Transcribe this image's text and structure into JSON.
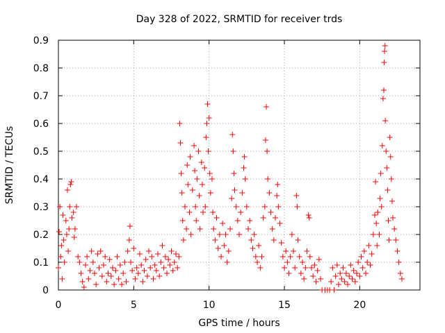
{
  "chart_data": {
    "type": "scatter",
    "title": "Day 328 of 2022, SRMTID for receiver trds",
    "xlabel": "GPS time / hours",
    "ylabel": "SRMTID / TECUs",
    "xlim": [
      0,
      24
    ],
    "ylim": [
      0,
      0.9
    ],
    "xticks": [
      0,
      5,
      10,
      15,
      20
    ],
    "xtick_labels": [
      "0",
      "5",
      "10",
      "15",
      "20"
    ],
    "yticks": [
      0,
      0.1,
      0.2,
      0.3,
      0.4,
      0.5,
      0.6,
      0.7,
      0.8,
      0.9
    ],
    "ytick_labels": [
      "0",
      "0.1",
      "0.2",
      "0.3",
      "0.4",
      "0.5",
      "0.6",
      "0.7",
      "0.8",
      "0.9"
    ],
    "grid": true,
    "marker": "+",
    "color": "#ff0000",
    "series": [
      {
        "name": "SRMTID",
        "points": [
          [
            0.0,
            0.08
          ],
          [
            0.05,
            0.21
          ],
          [
            0.1,
            0.3
          ],
          [
            0.15,
            0.12
          ],
          [
            0.2,
            0.16
          ],
          [
            0.25,
            0.04
          ],
          [
            0.3,
            0.27
          ],
          [
            0.35,
            0.18
          ],
          [
            0.4,
            0.1
          ],
          [
            0.5,
            0.25
          ],
          [
            0.55,
            0.2
          ],
          [
            0.6,
            0.36
          ],
          [
            0.65,
            0.14
          ],
          [
            0.7,
            0.22
          ],
          [
            0.75,
            0.3
          ],
          [
            0.8,
            0.38
          ],
          [
            0.85,
            0.39
          ],
          [
            0.9,
            0.26
          ],
          [
            1.0,
            0.28
          ],
          [
            1.05,
            0.19
          ],
          [
            1.1,
            0.22
          ],
          [
            1.2,
            0.3
          ],
          [
            1.3,
            0.12
          ],
          [
            1.4,
            0.1
          ],
          [
            1.5,
            0.06
          ],
          [
            1.6,
            0.03
          ],
          [
            1.7,
            0.01
          ],
          [
            1.8,
            0.09
          ],
          [
            1.9,
            0.12
          ],
          [
            2.0,
            0.04
          ],
          [
            2.1,
            0.07
          ],
          [
            2.2,
            0.14
          ],
          [
            2.3,
            0.1
          ],
          [
            2.4,
            0.06
          ],
          [
            2.5,
            0.02
          ],
          [
            2.6,
            0.13
          ],
          [
            2.7,
            0.08
          ],
          [
            2.8,
            0.14
          ],
          [
            2.9,
            0.05
          ],
          [
            3.0,
            0.09
          ],
          [
            3.1,
            0.12
          ],
          [
            3.2,
            0.03
          ],
          [
            3.3,
            0.06
          ],
          [
            3.4,
            0.11
          ],
          [
            3.5,
            0.05
          ],
          [
            3.6,
            0.08
          ],
          [
            3.7,
            0.02
          ],
          [
            3.8,
            0.07
          ],
          [
            3.9,
            0.12
          ],
          [
            4.0,
            0.04
          ],
          [
            4.1,
            0.09
          ],
          [
            4.2,
            0.02
          ],
          [
            4.3,
            0.06
          ],
          [
            4.4,
            0.1
          ],
          [
            4.5,
            0.03
          ],
          [
            4.6,
            0.14
          ],
          [
            4.7,
            0.18
          ],
          [
            4.75,
            0.23
          ],
          [
            4.8,
            0.1
          ],
          [
            4.9,
            0.07
          ],
          [
            5.0,
            0.15
          ],
          [
            5.1,
            0.04
          ],
          [
            5.2,
            0.08
          ],
          [
            5.3,
            0.06
          ],
          [
            5.4,
            0.13
          ],
          [
            5.5,
            0.09
          ],
          [
            5.6,
            0.03
          ],
          [
            5.7,
            0.07
          ],
          [
            5.8,
            0.11
          ],
          [
            5.9,
            0.05
          ],
          [
            6.0,
            0.14
          ],
          [
            6.1,
            0.08
          ],
          [
            6.2,
            0.12
          ],
          [
            6.3,
            0.04
          ],
          [
            6.4,
            0.09
          ],
          [
            6.5,
            0.07
          ],
          [
            6.6,
            0.13
          ],
          [
            6.7,
            0.05
          ],
          [
            6.8,
            0.1
          ],
          [
            6.9,
            0.16
          ],
          [
            7.0,
            0.08
          ],
          [
            7.1,
            0.12
          ],
          [
            7.2,
            0.06
          ],
          [
            7.3,
            0.11
          ],
          [
            7.4,
            0.09
          ],
          [
            7.5,
            0.14
          ],
          [
            7.6,
            0.07
          ],
          [
            7.7,
            0.1
          ],
          [
            7.8,
            0.13
          ],
          [
            7.9,
            0.08
          ],
          [
            8.0,
            0.12
          ],
          [
            8.05,
            0.6
          ],
          [
            8.1,
            0.53
          ],
          [
            8.15,
            0.42
          ],
          [
            8.2,
            0.35
          ],
          [
            8.25,
            0.25
          ],
          [
            8.3,
            0.18
          ],
          [
            8.4,
            0.3
          ],
          [
            8.5,
            0.22
          ],
          [
            8.55,
            0.45
          ],
          [
            8.6,
            0.38
          ],
          [
            8.7,
            0.28
          ],
          [
            8.75,
            0.48
          ],
          [
            8.8,
            0.2
          ],
          [
            8.9,
            0.36
          ],
          [
            9.0,
            0.52
          ],
          [
            9.05,
            0.43
          ],
          [
            9.1,
            0.3
          ],
          [
            9.15,
            0.25
          ],
          [
            9.2,
            0.4
          ],
          [
            9.3,
            0.5
          ],
          [
            9.35,
            0.34
          ],
          [
            9.4,
            0.22
          ],
          [
            9.5,
            0.46
          ],
          [
            9.55,
            0.38
          ],
          [
            9.6,
            0.28
          ],
          [
            9.7,
            0.44
          ],
          [
            9.75,
            0.3
          ],
          [
            9.8,
            0.55
          ],
          [
            9.85,
            0.6
          ],
          [
            9.9,
            0.67
          ],
          [
            9.95,
            0.5
          ],
          [
            10.0,
            0.62
          ],
          [
            10.05,
            0.42
          ],
          [
            10.1,
            0.35
          ],
          [
            10.2,
            0.4
          ],
          [
            10.25,
            0.28
          ],
          [
            10.3,
            0.22
          ],
          [
            10.4,
            0.18
          ],
          [
            10.5,
            0.26
          ],
          [
            10.6,
            0.15
          ],
          [
            10.7,
            0.2
          ],
          [
            10.8,
            0.12
          ],
          [
            10.9,
            0.24
          ],
          [
            11.0,
            0.16
          ],
          [
            11.1,
            0.2
          ],
          [
            11.2,
            0.1
          ],
          [
            11.3,
            0.14
          ],
          [
            11.4,
            0.22
          ],
          [
            11.5,
            0.33
          ],
          [
            11.55,
            0.56
          ],
          [
            11.6,
            0.5
          ],
          [
            11.65,
            0.42
          ],
          [
            11.7,
            0.36
          ],
          [
            11.8,
            0.3
          ],
          [
            11.9,
            0.25
          ],
          [
            12.0,
            0.2
          ],
          [
            12.1,
            0.28
          ],
          [
            12.2,
            0.35
          ],
          [
            12.3,
            0.44
          ],
          [
            12.35,
            0.48
          ],
          [
            12.4,
            0.4
          ],
          [
            12.5,
            0.3
          ],
          [
            12.6,
            0.22
          ],
          [
            12.7,
            0.25
          ],
          [
            12.8,
            0.18
          ],
          [
            12.9,
            0.15
          ],
          [
            13.0,
            0.2
          ],
          [
            13.1,
            0.12
          ],
          [
            13.2,
            0.1
          ],
          [
            13.3,
            0.16
          ],
          [
            13.4,
            0.08
          ],
          [
            13.5,
            0.12
          ],
          [
            13.6,
            0.26
          ],
          [
            13.7,
            0.3
          ],
          [
            13.75,
            0.54
          ],
          [
            13.8,
            0.66
          ],
          [
            13.85,
            0.5
          ],
          [
            13.9,
            0.4
          ],
          [
            14.0,
            0.35
          ],
          [
            14.1,
            0.28
          ],
          [
            14.2,
            0.22
          ],
          [
            14.3,
            0.18
          ],
          [
            14.4,
            0.26
          ],
          [
            14.5,
            0.34
          ],
          [
            14.55,
            0.38
          ],
          [
            14.6,
            0.3
          ],
          [
            14.7,
            0.24
          ],
          [
            14.8,
            0.17
          ],
          [
            14.9,
            0.12
          ],
          [
            15.0,
            0.08
          ],
          [
            15.1,
            0.14
          ],
          [
            15.2,
            0.1
          ],
          [
            15.3,
            0.06
          ],
          [
            15.4,
            0.12
          ],
          [
            15.5,
            0.2
          ],
          [
            15.6,
            0.14
          ],
          [
            15.7,
            0.08
          ],
          [
            15.8,
            0.34
          ],
          [
            15.85,
            0.3
          ],
          [
            15.9,
            0.18
          ],
          [
            16.0,
            0.12
          ],
          [
            16.1,
            0.06
          ],
          [
            16.2,
            0.1
          ],
          [
            16.3,
            0.04
          ],
          [
            16.4,
            0.08
          ],
          [
            16.5,
            0.14
          ],
          [
            16.6,
            0.27
          ],
          [
            16.65,
            0.26
          ],
          [
            16.7,
            0.12
          ],
          [
            16.8,
            0.08
          ],
          [
            16.9,
            0.05
          ],
          [
            17.0,
            0.09
          ],
          [
            17.1,
            0.03
          ],
          [
            17.2,
            0.07
          ],
          [
            17.3,
            0.11
          ],
          [
            17.4,
            0.04
          ],
          [
            17.5,
            0.0
          ],
          [
            17.7,
            0.0
          ],
          [
            17.85,
            0.0
          ],
          [
            18.0,
            0.0
          ],
          [
            18.1,
            0.03
          ],
          [
            18.2,
            0.08
          ],
          [
            18.3,
            0.0
          ],
          [
            18.4,
            0.05
          ],
          [
            18.5,
            0.09
          ],
          [
            18.6,
            0.02
          ],
          [
            18.7,
            0.06
          ],
          [
            18.8,
            0.04
          ],
          [
            18.9,
            0.08
          ],
          [
            19.0,
            0.03
          ],
          [
            19.1,
            0.06
          ],
          [
            19.2,
            0.02
          ],
          [
            19.3,
            0.05
          ],
          [
            19.4,
            0.09
          ],
          [
            19.5,
            0.04
          ],
          [
            19.6,
            0.07
          ],
          [
            19.7,
            0.03
          ],
          [
            19.8,
            0.06
          ],
          [
            19.9,
            0.1
          ],
          [
            20.0,
            0.05
          ],
          [
            20.1,
            0.12
          ],
          [
            20.2,
            0.08
          ],
          [
            20.3,
            0.14
          ],
          [
            20.4,
            0.06
          ],
          [
            20.5,
            0.1
          ],
          [
            20.6,
            0.16
          ],
          [
            20.7,
            0.09
          ],
          [
            20.8,
            0.13
          ],
          [
            20.9,
            0.2
          ],
          [
            21.0,
            0.27
          ],
          [
            21.05,
            0.39
          ],
          [
            21.1,
            0.24
          ],
          [
            21.15,
            0.16
          ],
          [
            21.2,
            0.28
          ],
          [
            21.3,
            0.2
          ],
          [
            21.35,
            0.33
          ],
          [
            21.4,
            0.42
          ],
          [
            21.45,
            0.3
          ],
          [
            21.5,
            0.52
          ],
          [
            21.55,
            0.69
          ],
          [
            21.6,
            0.72
          ],
          [
            21.62,
            0.82
          ],
          [
            21.65,
            0.86
          ],
          [
            21.68,
            0.88
          ],
          [
            21.7,
            0.61
          ],
          [
            21.75,
            0.5
          ],
          [
            21.8,
            0.44
          ],
          [
            21.85,
            0.36
          ],
          [
            21.9,
            0.25
          ],
          [
            21.95,
            0.18
          ],
          [
            22.0,
            0.55
          ],
          [
            22.05,
            0.48
          ],
          [
            22.1,
            0.4
          ],
          [
            22.15,
            0.32
          ],
          [
            22.2,
            0.26
          ],
          [
            22.3,
            0.22
          ],
          [
            22.4,
            0.18
          ],
          [
            22.5,
            0.14
          ],
          [
            22.6,
            0.1
          ],
          [
            22.7,
            0.06
          ],
          [
            22.8,
            0.04
          ]
        ]
      }
    ]
  }
}
